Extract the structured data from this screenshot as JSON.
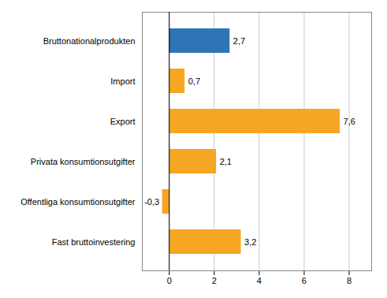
{
  "chart_data": {
    "type": "bar",
    "orientation": "horizontal",
    "categories": [
      "Fast bruttoinvestering",
      "Offentliga konsumtionsutgifter",
      "Privata konsumtionsutgifter",
      "Export",
      "Import",
      "Bruttonationalprodukten"
    ],
    "values": [
      3.2,
      -0.3,
      2.1,
      7.6,
      0.7,
      2.7
    ],
    "value_labels": [
      "3,2",
      "-0,3",
      "2,1",
      "7,6",
      "0,7",
      "2,7"
    ],
    "data_labels": true,
    "colors": [
      "#f5a623",
      "#f5a623",
      "#f5a623",
      "#f5a623",
      "#f5a623",
      "#2e75b6"
    ],
    "xlim": [
      -1.2,
      9
    ],
    "xticks": [
      0,
      2,
      4,
      6,
      8
    ],
    "grid": true
  }
}
